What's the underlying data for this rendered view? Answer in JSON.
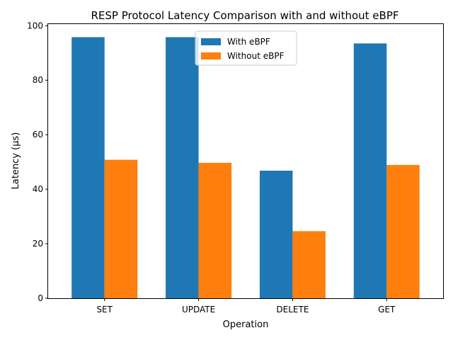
{
  "chart_data": {
    "type": "bar",
    "title": "RESP Protocol Latency Comparison with and without eBPF",
    "xlabel": "Operation",
    "ylabel": "Latency (µs)",
    "categories": [
      "SET",
      "UPDATE",
      "DELETE",
      "GET"
    ],
    "series": [
      {
        "name": "With eBPF",
        "values": [
          95.8,
          95.8,
          46.8,
          93.5
        ],
        "color": "#1f77b4"
      },
      {
        "name": "Without eBPF",
        "values": [
          50.8,
          49.7,
          24.6,
          48.9
        ],
        "color": "#ff7f0e"
      }
    ],
    "ylim": [
      0,
      100.6
    ],
    "yticks": [
      0,
      20,
      40,
      60,
      80,
      100
    ],
    "grid": false,
    "legend": "upper-center"
  }
}
